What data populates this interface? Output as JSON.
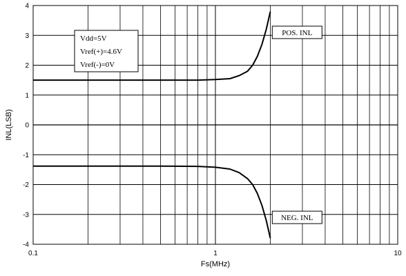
{
  "chart_data": {
    "type": "line",
    "title": "",
    "xlabel": "Fs(MHz)",
    "ylabel": "INL(LSB)",
    "x_scale": "log",
    "xlim": [
      0.1,
      10
    ],
    "ylim": [
      -4,
      4
    ],
    "x_ticks": [
      0.1,
      1,
      10
    ],
    "x_tick_labels": [
      "0.1",
      "1",
      "10"
    ],
    "y_ticks": [
      -4,
      -3,
      -2,
      -1,
      0,
      1,
      2,
      3,
      4
    ],
    "y_tick_labels": [
      "-4",
      "-3",
      "-2",
      "-1",
      "0",
      "1",
      "2",
      "3",
      "4"
    ],
    "grid": true,
    "series": [
      {
        "name": "POS. INL",
        "color": "#000000",
        "x": [
          0.1,
          0.2,
          0.5,
          0.8,
          1.0,
          1.2,
          1.35,
          1.5,
          1.6,
          1.7,
          1.8,
          1.9,
          2.0
        ],
        "y": [
          1.5,
          1.5,
          1.5,
          1.5,
          1.52,
          1.55,
          1.65,
          1.8,
          2.0,
          2.3,
          2.7,
          3.2,
          3.8
        ]
      },
      {
        "name": "NEG. INL",
        "color": "#000000",
        "x": [
          0.1,
          0.2,
          0.5,
          0.8,
          1.0,
          1.2,
          1.35,
          1.5,
          1.6,
          1.7,
          1.8,
          1.9,
          2.0
        ],
        "y": [
          -1.38,
          -1.38,
          -1.38,
          -1.39,
          -1.42,
          -1.48,
          -1.6,
          -1.8,
          -2.0,
          -2.3,
          -2.7,
          -3.2,
          -3.8
        ]
      }
    ],
    "annotations": [
      {
        "text": "POS. INL",
        "x": 2.05,
        "y": 3.1
      },
      {
        "text": "NEG. INL",
        "x": 2.05,
        "y": -3.1
      }
    ],
    "info_box": [
      "Vdd=5V",
      "Vref(+)=4.6V",
      "Vref(-)=0V"
    ]
  }
}
